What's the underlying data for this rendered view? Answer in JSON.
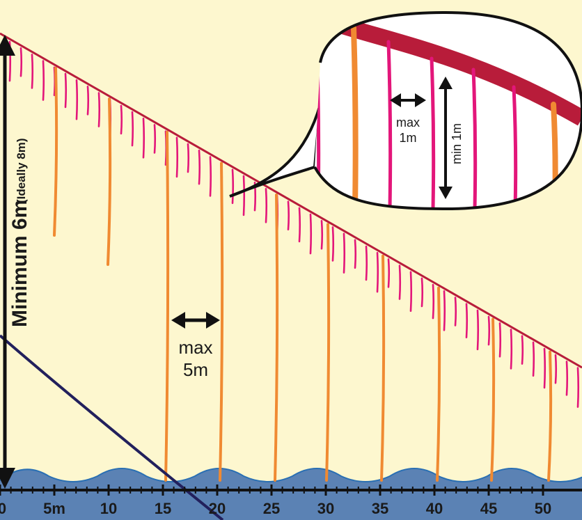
{
  "diagram": {
    "vertical_label": "Minimum 6m",
    "vertical_label_note": "(Ideally 8m)",
    "spacing_label_line1": "max",
    "spacing_label_line2": "5m",
    "axis_ticks": [
      "0",
      "5m",
      "10",
      "15",
      "20",
      "25",
      "30",
      "35",
      "40",
      "45",
      "50"
    ],
    "inset": {
      "spacing_line1": "max",
      "spacing_line2": "1m",
      "length_label": "min 1m"
    },
    "colors": {
      "background": "#fdf7cf",
      "backbone": "#b81c3a",
      "short_dropper": "#e3167a",
      "long_dropper": "#f08a32",
      "water": "#5b82b4",
      "curve": "#22205c",
      "arrow": "#111111"
    }
  }
}
